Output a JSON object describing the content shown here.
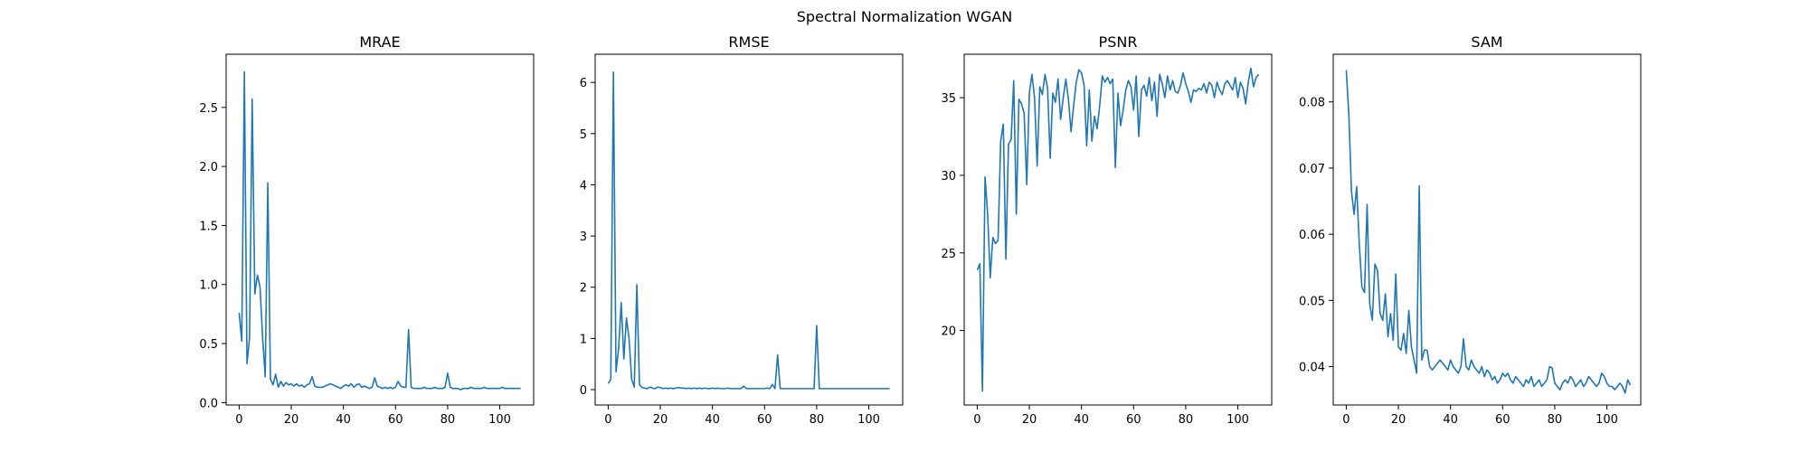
{
  "figure": {
    "suptitle": "Spectral Normalization WGAN"
  },
  "chart_data": [
    {
      "type": "line",
      "title": "MRAE",
      "xlabel": "",
      "ylabel": "",
      "xlim": [
        -5,
        113
      ],
      "ylim": [
        -0.02,
        2.95
      ],
      "xticks": [
        0,
        20,
        40,
        60,
        80,
        100
      ],
      "yticks": [
        0.0,
        0.5,
        1.0,
        1.5,
        2.0,
        2.5
      ],
      "ytick_labels": [
        "0.0",
        "0.5",
        "1.0",
        "1.5",
        "2.0",
        "2.5"
      ],
      "color": "#1f77b4",
      "series": [
        {
          "values": [
            0.76,
            0.52,
            2.8,
            0.33,
            0.55,
            2.57,
            0.92,
            1.08,
            0.98,
            0.55,
            0.22,
            1.86,
            0.2,
            0.15,
            0.24,
            0.13,
            0.18,
            0.14,
            0.17,
            0.15,
            0.16,
            0.14,
            0.16,
            0.14,
            0.15,
            0.13,
            0.15,
            0.16,
            0.22,
            0.14,
            0.13,
            0.13,
            0.13,
            0.14,
            0.15,
            0.16,
            0.15,
            0.14,
            0.13,
            0.12,
            0.14,
            0.15,
            0.14,
            0.16,
            0.13,
            0.15,
            0.16,
            0.13,
            0.14,
            0.13,
            0.12,
            0.13,
            0.21,
            0.14,
            0.13,
            0.12,
            0.13,
            0.12,
            0.13,
            0.12,
            0.13,
            0.18,
            0.14,
            0.13,
            0.13,
            0.62,
            0.13,
            0.12,
            0.12,
            0.12,
            0.12,
            0.13,
            0.12,
            0.12,
            0.12,
            0.13,
            0.12,
            0.12,
            0.12,
            0.13,
            0.25,
            0.13,
            0.12,
            0.12,
            0.12,
            0.11,
            0.12,
            0.12,
            0.12,
            0.13,
            0.12,
            0.12,
            0.12,
            0.12,
            0.13,
            0.12,
            0.12,
            0.12,
            0.12,
            0.12,
            0.12,
            0.13,
            0.12,
            0.12,
            0.12,
            0.12,
            0.12,
            0.12,
            0.12
          ]
        }
      ]
    },
    {
      "type": "line",
      "title": "RMSE",
      "xlabel": "",
      "ylabel": "",
      "xlim": [
        -5,
        113
      ],
      "ylim": [
        -0.3,
        6.55
      ],
      "xticks": [
        0,
        20,
        40,
        60,
        80,
        100
      ],
      "yticks": [
        0,
        1,
        2,
        3,
        4,
        5,
        6
      ],
      "ytick_labels": [
        "0",
        "1",
        "2",
        "3",
        "4",
        "5",
        "6"
      ],
      "color": "#1f77b4",
      "series": [
        {
          "values": [
            0.12,
            0.2,
            6.2,
            0.35,
            0.8,
            1.7,
            0.6,
            1.4,
            1.0,
            0.2,
            0.05,
            2.05,
            0.1,
            0.04,
            0.03,
            0.02,
            0.05,
            0.03,
            0.02,
            0.05,
            0.04,
            0.02,
            0.03,
            0.02,
            0.03,
            0.02,
            0.03,
            0.04,
            0.03,
            0.03,
            0.02,
            0.03,
            0.02,
            0.03,
            0.02,
            0.03,
            0.02,
            0.03,
            0.02,
            0.02,
            0.03,
            0.02,
            0.03,
            0.02,
            0.02,
            0.02,
            0.03,
            0.02,
            0.02,
            0.02,
            0.02,
            0.02,
            0.07,
            0.02,
            0.02,
            0.02,
            0.02,
            0.02,
            0.02,
            0.02,
            0.02,
            0.03,
            0.02,
            0.1,
            0.02,
            0.68,
            0.02,
            0.02,
            0.02,
            0.02,
            0.02,
            0.02,
            0.02,
            0.02,
            0.02,
            0.02,
            0.02,
            0.02,
            0.02,
            0.02,
            1.25,
            0.02,
            0.02,
            0.02,
            0.02,
            0.02,
            0.02,
            0.02,
            0.02,
            0.02,
            0.02,
            0.02,
            0.02,
            0.02,
            0.02,
            0.02,
            0.02,
            0.02,
            0.02,
            0.02,
            0.02,
            0.02,
            0.02,
            0.02,
            0.02,
            0.02,
            0.02,
            0.02,
            0.02
          ]
        }
      ]
    },
    {
      "type": "line",
      "title": "PSNR",
      "xlabel": "",
      "ylabel": "",
      "xlim": [
        -5,
        113
      ],
      "ylim": [
        15.2,
        37.8
      ],
      "xticks": [
        0,
        20,
        40,
        60,
        80,
        100
      ],
      "yticks": [
        20,
        25,
        30,
        35
      ],
      "ytick_labels": [
        "20",
        "25",
        "30",
        "35"
      ],
      "color": "#1f77b4",
      "series": [
        {
          "values": [
            23.9,
            24.3,
            16.1,
            29.9,
            27.5,
            23.4,
            26.0,
            25.6,
            25.8,
            32.2,
            33.3,
            24.6,
            32.0,
            32.3,
            36.1,
            27.5,
            34.9,
            34.6,
            34.0,
            29.4,
            35.3,
            36.5,
            35.0,
            30.6,
            35.7,
            35.2,
            36.5,
            35.6,
            31.1,
            35.3,
            34.7,
            36.2,
            33.6,
            35.0,
            36.2,
            34.9,
            32.8,
            34.5,
            36.0,
            36.8,
            36.6,
            35.8,
            31.9,
            35.5,
            32.2,
            33.8,
            33.0,
            34.5,
            36.4,
            36.0,
            36.3,
            35.9,
            36.2,
            30.5,
            35.3,
            33.2,
            34.2,
            35.5,
            36.1,
            35.7,
            34.2,
            36.4,
            32.5,
            35.5,
            35.8,
            35.1,
            36.3,
            34.8,
            36.0,
            33.8,
            36.5,
            35.9,
            35.0,
            36.4,
            35.5,
            36.1,
            35.4,
            35.3,
            35.8,
            36.6,
            35.9,
            35.4,
            34.7,
            35.5,
            35.4,
            35.6,
            35.5,
            35.9,
            35.3,
            36.0,
            35.8,
            35.0,
            36.0,
            35.5,
            35.2,
            35.9,
            36.1,
            35.8,
            35.5,
            36.3,
            35.0,
            36.0,
            35.6,
            34.6,
            36.0,
            36.9,
            35.7,
            36.3,
            36.5
          ]
        }
      ]
    },
    {
      "type": "line",
      "title": "SAM",
      "xlabel": "",
      "ylabel": "",
      "xlim": [
        -5,
        113
      ],
      "ylim": [
        0.0342,
        0.0872
      ],
      "xticks": [
        0,
        20,
        40,
        60,
        80,
        100
      ],
      "yticks": [
        0.04,
        0.05,
        0.06,
        0.07,
        0.08
      ],
      "ytick_labels": [
        "0.04",
        "0.05",
        "0.06",
        "0.07",
        "0.08"
      ],
      "color": "#1f77b4",
      "series": [
        {
          "values": [
            0.0848,
            0.078,
            0.0665,
            0.063,
            0.0672,
            0.0585,
            0.052,
            0.0512,
            0.0645,
            0.0495,
            0.047,
            0.0555,
            0.0545,
            0.048,
            0.047,
            0.051,
            0.0445,
            0.048,
            0.044,
            0.054,
            0.043,
            0.0425,
            0.045,
            0.042,
            0.0485,
            0.043,
            0.041,
            0.039,
            0.0673,
            0.041,
            0.0425,
            0.0425,
            0.04,
            0.0395,
            0.04,
            0.0405,
            0.041,
            0.0405,
            0.04,
            0.0395,
            0.041,
            0.04,
            0.0395,
            0.039,
            0.04,
            0.0442,
            0.04,
            0.0395,
            0.041,
            0.04,
            0.0395,
            0.039,
            0.04,
            0.0385,
            0.0395,
            0.039,
            0.038,
            0.0385,
            0.0375,
            0.038,
            0.039,
            0.0385,
            0.039,
            0.038,
            0.0375,
            0.0385,
            0.038,
            0.0375,
            0.037,
            0.038,
            0.0375,
            0.0385,
            0.037,
            0.0375,
            0.038,
            0.037,
            0.0375,
            0.038,
            0.04,
            0.0398,
            0.0375,
            0.037,
            0.0365,
            0.0375,
            0.038,
            0.0375,
            0.0385,
            0.038,
            0.037,
            0.0375,
            0.038,
            0.037,
            0.0375,
            0.0385,
            0.038,
            0.0375,
            0.037,
            0.0375,
            0.039,
            0.0385,
            0.0375,
            0.037,
            0.037,
            0.0365,
            0.037,
            0.0375,
            0.037,
            0.036,
            0.038,
            0.0372
          ]
        }
      ]
    }
  ]
}
